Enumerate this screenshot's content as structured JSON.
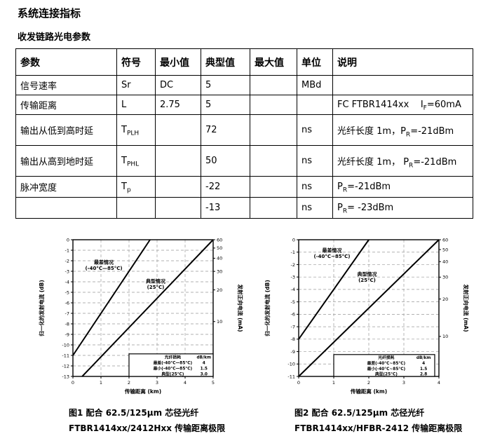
{
  "page": {
    "title": "系统连接指标",
    "subtitle": "收发链路光电参数"
  },
  "table": {
    "headers": [
      "参数",
      "符号",
      "最小值",
      "典型值",
      "最大值",
      "单位",
      "说明"
    ],
    "rows": [
      {
        "param": "信号速率",
        "sym_base": "Sr",
        "sym_sub": "",
        "min": "DC",
        "typ": "5",
        "max": "",
        "unit": "MBd",
        "desc_pre": "",
        "desc_sub": "",
        "desc_post": ""
      },
      {
        "param": "传输距离",
        "sym_base": "L",
        "sym_sub": "",
        "min": "2.75",
        "typ": "5",
        "max": "",
        "unit": "",
        "desc_pre": "FC FTBR1414xx    I",
        "desc_sub": "F",
        "desc_post": "=60mA"
      },
      {
        "param": "输出从低到高时延",
        "sym_base": "T",
        "sym_sub": "PLH",
        "min": "",
        "typ": "72",
        "max": "",
        "unit": "ns",
        "desc_pre": "光纤长度 1m，P",
        "desc_sub": "R",
        "desc_post": "=-21dBm"
      },
      {
        "param": "输出从高到地时延",
        "sym_base": "T",
        "sym_sub": "PHL",
        "min": "",
        "typ": "50",
        "max": "",
        "unit": "ns",
        "desc_pre": "光纤长度 1m， P",
        "desc_sub": "R",
        "desc_post": "=-21dBm"
      },
      {
        "param": "脉冲宽度",
        "sym_base": "T",
        "sym_sub": "p",
        "min": "",
        "typ": "-22",
        "max": "",
        "unit": "ns",
        "desc_pre": "P",
        "desc_sub": "R",
        "desc_post": "=-21dBm"
      },
      {
        "param": "",
        "sym_base": "",
        "sym_sub": "",
        "min": "",
        "typ": "-13",
        "max": "",
        "unit": "ns",
        "desc_pre": "P",
        "desc_sub": "R",
        "desc_post": "= -23dBm"
      }
    ]
  },
  "chart_data": [
    {
      "type": "line",
      "xlabel": "传输距离  (km)",
      "ylabel_left": "归一化的发射电流  (dB)",
      "ylabel_right": "发射正向电流  (mA)",
      "xlim": [
        0,
        5
      ],
      "ylim": [
        -13,
        0
      ],
      "x_ticks": [
        0,
        1,
        2,
        3,
        4,
        5
      ],
      "y_ticks": [
        0,
        -1,
        -2,
        -3,
        -4,
        -5,
        -6,
        -7,
        -8,
        -9,
        -10,
        -11,
        -12,
        -13
      ],
      "right_ticks_mA": [
        60,
        50,
        40,
        30,
        20,
        10
      ],
      "right_ref_mA": 60,
      "grid": true,
      "series": [
        {
          "label1": "最差情况",
          "label2": "(-40°C—85°C)",
          "points": [
            [
              0,
              -11
            ],
            [
              2.75,
              0
            ]
          ],
          "label_x": 1.1,
          "label_y": -2.3
        },
        {
          "label1": "典型情况",
          "label2": "(25°C)",
          "points": [
            [
              0.33,
              -13
            ],
            [
              5,
              0
            ]
          ],
          "label_x": 2.95,
          "label_y": -4.1
        }
      ],
      "legend": {
        "x0f": 0.4,
        "x1f": 1.0,
        "hf": 0.165,
        "header": [
          "光纤损耗",
          "dB/km"
        ],
        "rows": [
          [
            "最差(-40°C—85°C)",
            "4"
          ],
          [
            "最小(-40°C—85°C)",
            "1.5"
          ],
          [
            "典型(25°C)",
            "3.0"
          ]
        ]
      },
      "caption_line1": "图1 配合 62.5/125µm  芯径光纤",
      "caption_line2": "FTBR1414xx/2412Hxx 传输距离极限"
    },
    {
      "type": "line",
      "xlabel": "传输距离  (km)",
      "ylabel_left": "归一化的发射电流  (dB)",
      "ylabel_right": "发射正向电流  (mA)",
      "xlim": [
        0,
        4
      ],
      "ylim": [
        -11,
        0
      ],
      "x_ticks": [
        0,
        1,
        2,
        3,
        4
      ],
      "y_ticks": [
        0,
        -1,
        -2,
        -3,
        -4,
        -5,
        -6,
        -7,
        -8,
        -9,
        -10,
        -11
      ],
      "right_ticks_mA": [
        60,
        50,
        40,
        30,
        20,
        10
      ],
      "right_ref_mA": 60,
      "grid": true,
      "series": [
        {
          "label1": "最差情况",
          "label2": "(-40°C~85°C)",
          "points": [
            [
              0,
              -8
            ],
            [
              2,
              0
            ]
          ],
          "label_x": 0.95,
          "label_y": -1.0
        },
        {
          "label1": "典型情况",
          "label2": "(25°C)",
          "points": [
            [
              0,
              -11
            ],
            [
              4,
              0
            ]
          ],
          "label_x": 1.95,
          "label_y": -2.9
        }
      ],
      "legend": {
        "x0f": 0.25,
        "x1f": 0.97,
        "hf": 0.16,
        "header": [
          "光纤损耗",
          "dB/km"
        ],
        "rows": [
          [
            "最差(-40°C~85°C)",
            "4"
          ],
          [
            "最小(-40°C~85°C)",
            "1.5"
          ],
          [
            "典型(25°C)",
            "2.8"
          ]
        ]
      },
      "caption_line1": "图2 配合 62.5/125µm  芯径光纤",
      "caption_line2": "FTBR1414xx/HFBR-2412 传输距离极限"
    }
  ]
}
